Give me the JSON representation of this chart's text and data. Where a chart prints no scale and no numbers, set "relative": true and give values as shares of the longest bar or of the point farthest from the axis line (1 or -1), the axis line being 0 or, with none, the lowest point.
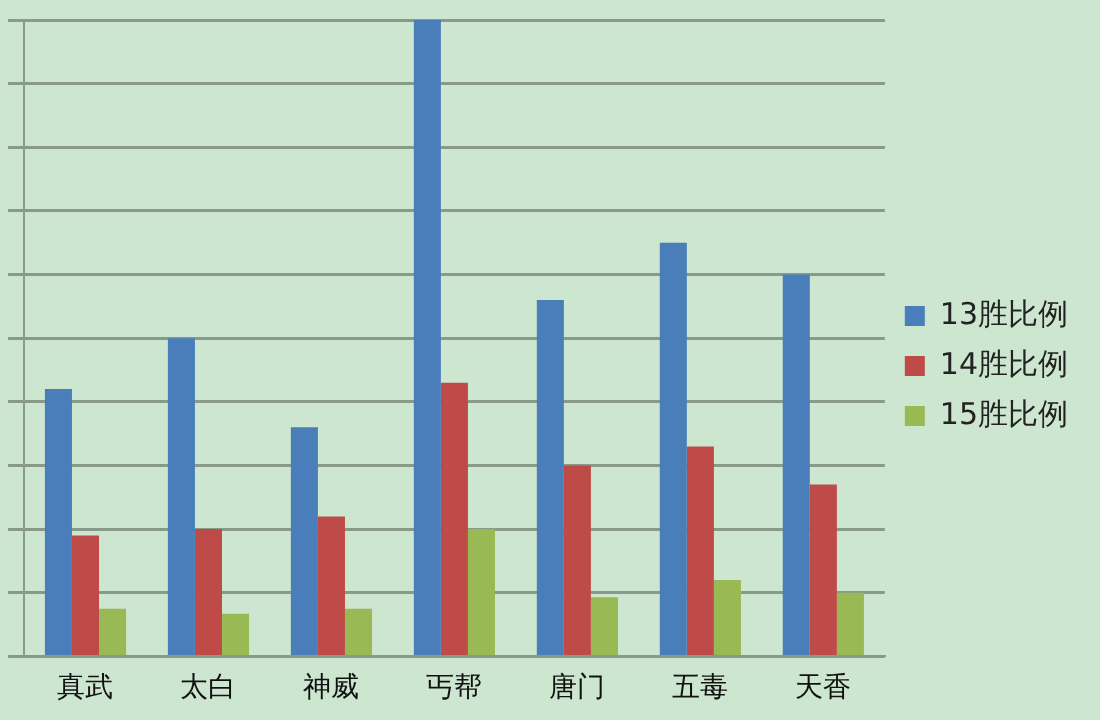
{
  "chart_data": {
    "type": "bar",
    "relative": true,
    "grid": "y",
    "legend": "right",
    "categories": [
      "真武",
      "太白",
      "神威",
      "丐帮",
      "唐门",
      "五毒",
      "天香"
    ],
    "series": [
      {
        "name": "13胜比例",
        "color": "#4a7ebb",
        "values": [
          0.42,
          0.5,
          0.36,
          1,
          0.56,
          0.65,
          0.6
        ]
      },
      {
        "name": "14胜比例",
        "color": "#be4b48",
        "values": [
          0.19,
          0.2,
          0.22,
          0.43,
          0.3,
          0.33,
          0.27
        ]
      },
      {
        "name": "15胜比例",
        "color": "#98b954",
        "values": [
          0.075,
          0.067,
          0.075,
          0.2,
          0.093,
          0.12,
          0.1
        ]
      }
    ]
  }
}
